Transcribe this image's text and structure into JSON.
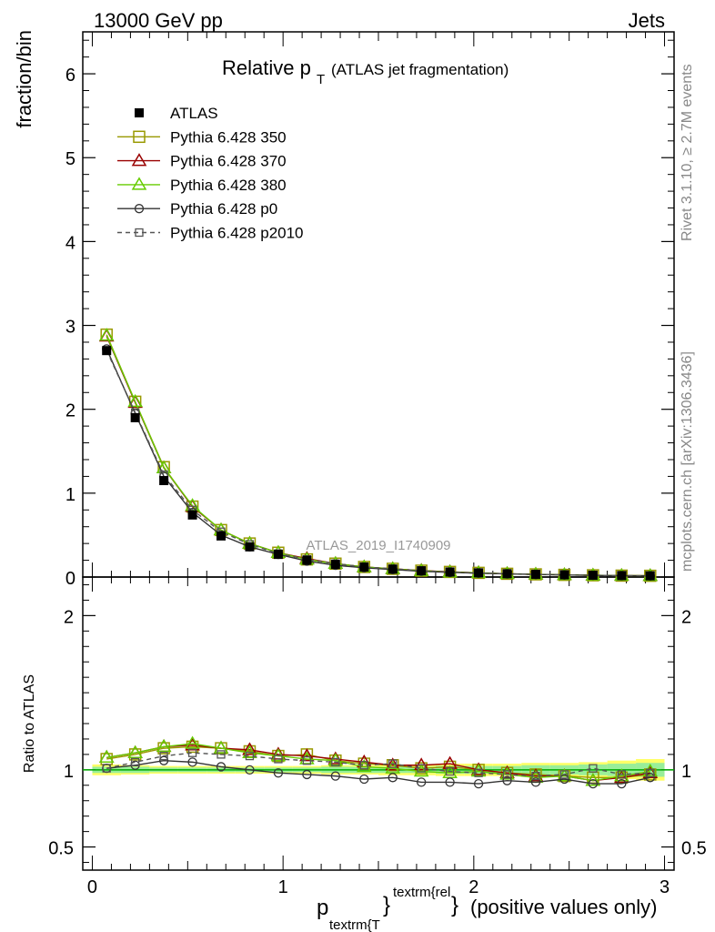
{
  "header": {
    "left": "13000 GeV pp",
    "right": "Jets"
  },
  "side_labels": {
    "rivet": "Rivet 3.1.10, ≥ 2.7M events",
    "mcplots": "mcplots.cern.ch [arXiv:1306.3436]"
  },
  "chart_data": {
    "type": "line",
    "title": "Relative p",
    "title_sub": "T",
    "title_suffix": "(ATLAS jet fragmentation)",
    "watermark": "ATLAS_2019_I1740909",
    "ylabel": "fraction/bin",
    "ratio_ylabel": "Ratio to ATLAS",
    "xlabel": {
      "p": "p",
      "sub": "textrm{T",
      "sup": "textrm{rel",
      "close": "}",
      "suffix": "(positive values only)"
    },
    "xlim": [
      -0.05,
      3.05
    ],
    "ylim": [
      0,
      6.5
    ],
    "ratio_ylim": [
      0.35,
      2.25
    ],
    "x_ticks": [
      "0",
      "1",
      "2",
      "3"
    ],
    "y_ticks": [
      "0",
      "1",
      "2",
      "3",
      "4",
      "5",
      "6"
    ],
    "ratio_y_ticks": [
      "0.5",
      "1",
      "2"
    ],
    "x": [
      0.075,
      0.225,
      0.375,
      0.525,
      0.675,
      0.825,
      0.975,
      1.125,
      1.275,
      1.425,
      1.575,
      1.725,
      1.875,
      2.025,
      2.175,
      2.325,
      2.475,
      2.625,
      2.775,
      2.925
    ],
    "data": {
      "name": "ATLAS",
      "values": [
        2.7,
        1.9,
        1.15,
        0.74,
        0.49,
        0.36,
        0.27,
        0.2,
        0.15,
        0.12,
        0.095,
        0.075,
        0.06,
        0.05,
        0.04,
        0.033,
        0.027,
        0.022,
        0.018,
        0.015
      ]
    },
    "series": [
      {
        "name": "Pythia 6.428 350",
        "color": "#999900",
        "marker": "square-open",
        "dash": "none",
        "values": [
          2.89,
          2.09,
          1.31,
          0.84,
          0.56,
          0.4,
          0.29,
          0.21,
          0.16,
          0.12,
          0.098,
          0.076,
          0.061,
          0.05,
          0.039,
          0.032,
          0.026,
          0.021,
          0.017,
          0.015
        ],
        "ratio": [
          1.07,
          1.1,
          1.14,
          1.15,
          1.14,
          1.12,
          1.09,
          1.1,
          1.06,
          1.04,
          1.03,
          1.01,
          1.02,
          1.0,
          0.98,
          0.97,
          0.96,
          0.95,
          0.95,
          0.97
        ]
      },
      {
        "name": "Pythia 6.428 370",
        "color": "#990000",
        "marker": "triangle-open",
        "dash": "none",
        "values": [
          2.87,
          2.08,
          1.3,
          0.84,
          0.56,
          0.4,
          0.29,
          0.22,
          0.16,
          0.12,
          0.098,
          0.077,
          0.061,
          0.05,
          0.039,
          0.032,
          0.026,
          0.021,
          0.017,
          0.015
        ],
        "ratio": [
          1.08,
          1.11,
          1.15,
          1.16,
          1.14,
          1.13,
          1.1,
          1.09,
          1.07,
          1.05,
          1.03,
          1.03,
          1.04,
          1.0,
          0.98,
          0.96,
          0.96,
          0.93,
          0.95,
          0.98
        ]
      },
      {
        "name": "Pythia 6.428 380",
        "color": "#66cc00",
        "marker": "triangle-open",
        "dash": "none",
        "values": [
          2.88,
          2.09,
          1.3,
          0.85,
          0.56,
          0.4,
          0.29,
          0.21,
          0.16,
          0.12,
          0.097,
          0.075,
          0.059,
          0.05,
          0.039,
          0.032,
          0.026,
          0.021,
          0.017,
          0.015
        ],
        "ratio": [
          1.08,
          1.11,
          1.15,
          1.17,
          1.14,
          1.11,
          1.09,
          1.07,
          1.06,
          1.02,
          1.01,
          0.99,
          0.98,
          0.99,
          0.97,
          0.95,
          0.96,
          0.93,
          0.96,
          0.99
        ]
      },
      {
        "name": "Pythia 6.428 p0",
        "color": "#333333",
        "marker": "circle-open",
        "dash": "none",
        "values": [
          2.72,
          1.95,
          1.2,
          0.77,
          0.5,
          0.36,
          0.27,
          0.19,
          0.14,
          0.11,
          0.089,
          0.069,
          0.055,
          0.045,
          0.037,
          0.03,
          0.025,
          0.02,
          0.016,
          0.014
        ],
        "ratio": [
          1.01,
          1.03,
          1.06,
          1.05,
          1.02,
          1.0,
          0.98,
          0.97,
          0.96,
          0.94,
          0.95,
          0.92,
          0.92,
          0.91,
          0.93,
          0.92,
          0.94,
          0.91,
          0.91,
          0.95
        ]
      },
      {
        "name": "Pythia 6.428 p2010",
        "color": "#555555",
        "marker": "square-open-small",
        "dash": "dashed",
        "values": [
          2.7,
          1.96,
          1.22,
          0.8,
          0.54,
          0.39,
          0.28,
          0.21,
          0.16,
          0.12,
          0.098,
          0.076,
          0.059,
          0.049,
          0.039,
          0.032,
          0.026,
          0.022,
          0.017,
          0.015
        ],
        "ratio": [
          1.01,
          1.05,
          1.09,
          1.11,
          1.1,
          1.09,
          1.07,
          1.06,
          1.05,
          1.03,
          1.04,
          1.01,
          0.99,
          0.98,
          0.97,
          0.96,
          0.97,
          1.01,
          0.97,
          0.98
        ]
      }
    ],
    "ratio_band": {
      "color_inner": "#ffff66",
      "color_outer": "#99ee99",
      "stat": [
        0.02,
        0.02,
        0.015,
        0.015,
        0.015,
        0.015,
        0.015,
        0.015,
        0.02,
        0.02,
        0.02,
        0.02,
        0.025,
        0.025,
        0.025,
        0.03,
        0.03,
        0.035,
        0.04,
        0.045
      ],
      "total": [
        0.035,
        0.03,
        0.025,
        0.025,
        0.025,
        0.025,
        0.025,
        0.025,
        0.03,
        0.03,
        0.035,
        0.035,
        0.04,
        0.04,
        0.04,
        0.045,
        0.045,
        0.05,
        0.06,
        0.07
      ]
    },
    "grid": false,
    "legend_position": "top-left"
  }
}
